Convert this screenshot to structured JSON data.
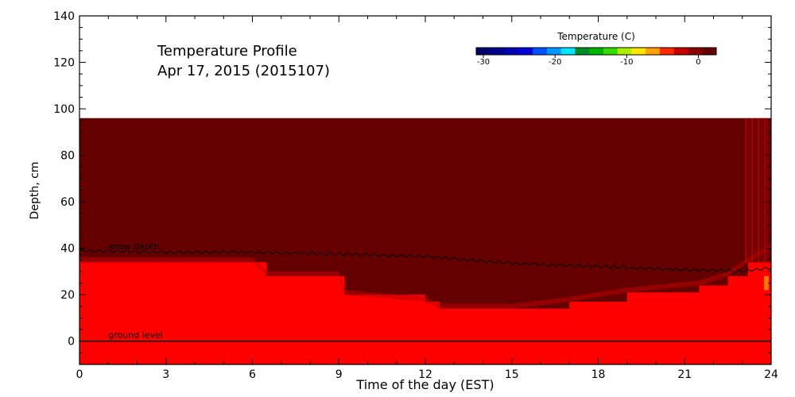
{
  "chart_data": {
    "type": "heatmap",
    "title": "Temperature Profile",
    "subtitle": "Apr 17, 2015 (2015107)",
    "xlabel": "Time of the day (EST)",
    "ylabel": "Depth, cm",
    "xlim": [
      0,
      24
    ],
    "ylim": [
      -10,
      140
    ],
    "x_ticks": [
      0,
      3,
      6,
      9,
      12,
      15,
      18,
      21,
      24
    ],
    "y_ticks": [
      0,
      20,
      40,
      60,
      80,
      100,
      120,
      140
    ],
    "colorbar": {
      "label": "Temperature (C)",
      "ticks": [
        -30,
        -20,
        -10,
        0
      ],
      "range": [
        -31,
        2.5
      ],
      "colors": [
        "#00006a",
        "#00008c",
        "#0000b4",
        "#0000dc",
        "#0050ff",
        "#0096ff",
        "#00e6ff",
        "#008c28",
        "#00b400",
        "#32dc00",
        "#aaf000",
        "#ffe600",
        "#ffa000",
        "#ff2800",
        "#c80000",
        "#8c0000",
        "#640000"
      ]
    },
    "annotations": [
      "snow depth",
      "ground level"
    ],
    "regions": [
      {
        "temperature_c": 2.0,
        "color": "#640000",
        "x": [
          0,
          24
        ],
        "y": [
          -10,
          96
        ]
      },
      {
        "temperature_c": 0.0,
        "color": "#ff0000",
        "x": [
          0,
          24
        ],
        "y": [
          -10,
          34
        ]
      }
    ],
    "red_boundary": {
      "x": [
        0,
        6,
        6.5,
        9,
        9.2,
        12,
        12.5,
        15,
        17,
        19,
        21.5,
        22.5,
        23.2,
        24
      ],
      "y": [
        34,
        34,
        28,
        28,
        20,
        17,
        14,
        14,
        17,
        21,
        24,
        28,
        34,
        40
      ]
    },
    "snow_depth": {
      "x": [
        0,
        1,
        2,
        3,
        4,
        5,
        6,
        7,
        8,
        9,
        10,
        11,
        12,
        13,
        14,
        15,
        16,
        17,
        18,
        19,
        20,
        21,
        22,
        23,
        24
      ],
      "y": [
        39,
        38.7,
        38.5,
        38.3,
        38.2,
        38.4,
        38.3,
        38.0,
        37.8,
        37.5,
        37.2,
        36.8,
        36.5,
        35.5,
        34.5,
        33.5,
        33.0,
        32.5,
        32.2,
        31.7,
        31.2,
        30.8,
        30.5,
        30.2,
        31.5
      ]
    },
    "ground_level": {
      "y": 0
    }
  }
}
